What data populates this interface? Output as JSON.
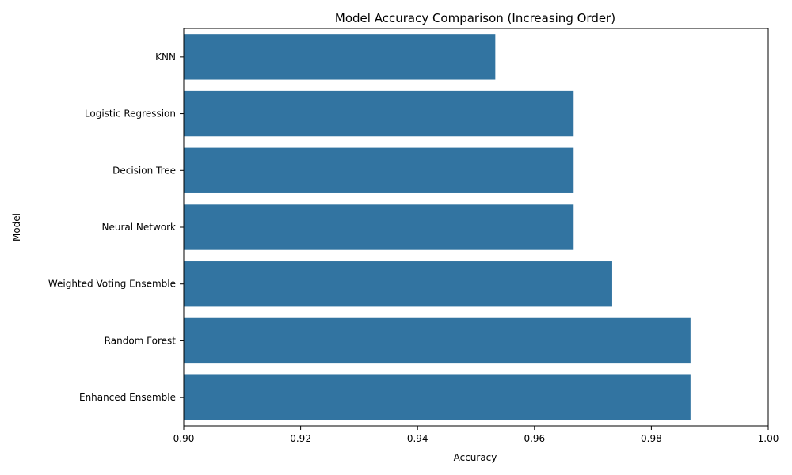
{
  "chart_data": {
    "type": "bar",
    "orientation": "horizontal",
    "title": "Model Accuracy Comparison (Increasing Order)",
    "xlabel": "Accuracy",
    "ylabel": "Model",
    "categories": [
      "KNN",
      "Logistic Regression",
      "Decision Tree",
      "Neural Network",
      "Weighted Voting Ensemble",
      "Random Forest",
      "Enhanced Ensemble"
    ],
    "values": [
      0.9533,
      0.9667,
      0.9667,
      0.9667,
      0.9733,
      0.9867,
      0.9867
    ],
    "xlim": [
      0.9,
      1.0
    ],
    "xticks": [
      "0.90",
      "0.92",
      "0.94",
      "0.96",
      "0.98",
      "1.00"
    ],
    "bar_color": "#3274a1",
    "grid": false,
    "legend": "none"
  }
}
